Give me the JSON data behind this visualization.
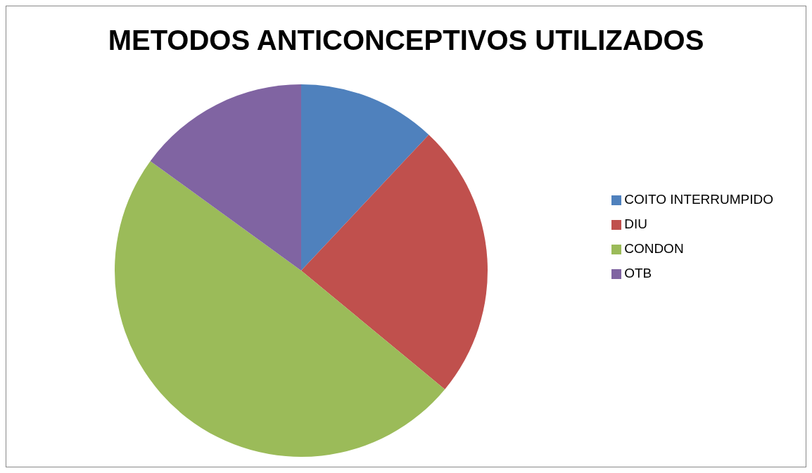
{
  "chart_data": {
    "type": "pie",
    "title": "METODOS ANTICONCEPTIVOS UTILIZADOS",
    "categories": [
      "COITO INTERRUMPIDO",
      "DIU",
      "CONDON",
      "OTB"
    ],
    "values": [
      12,
      24,
      49,
      15
    ],
    "colors": [
      "#4f81bd",
      "#c0504d",
      "#9bbb59",
      "#8064a2"
    ],
    "legend": "right"
  }
}
